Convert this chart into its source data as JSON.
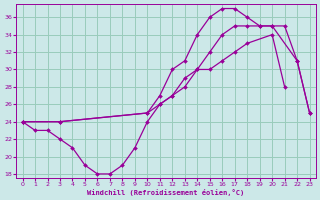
{
  "xlabel": "Windchill (Refroidissement éolien,°C)",
  "xlim": [
    -0.5,
    23.5
  ],
  "ylim": [
    17.5,
    37.5
  ],
  "yticks": [
    18,
    20,
    22,
    24,
    26,
    28,
    30,
    32,
    34,
    36
  ],
  "xticks": [
    0,
    1,
    2,
    3,
    4,
    5,
    6,
    7,
    8,
    9,
    10,
    11,
    12,
    13,
    14,
    15,
    16,
    17,
    18,
    19,
    20,
    21,
    22,
    23
  ],
  "background_color": "#cce8e8",
  "line_color": "#990099",
  "grid_color": "#99ccbb",
  "curve1_x": [
    0,
    1,
    2,
    3,
    4,
    5,
    6,
    7,
    8,
    9,
    10,
    11,
    12,
    13,
    14,
    15,
    16,
    17,
    18,
    20,
    21
  ],
  "curve1_y": [
    24,
    23,
    23,
    22,
    21,
    19,
    18,
    18,
    19,
    21,
    24,
    26,
    27,
    29,
    30,
    30,
    31,
    32,
    33,
    34,
    28
  ],
  "curve2_x": [
    0,
    3,
    10,
    11,
    12,
    13,
    14,
    15,
    16,
    17,
    18,
    19,
    20,
    21,
    22,
    23
  ],
  "curve2_y": [
    24,
    24,
    25,
    26,
    27,
    28,
    30,
    32,
    34,
    35,
    35,
    35,
    35,
    35,
    31,
    25
  ],
  "curve3_x": [
    0,
    3,
    10,
    11,
    12,
    13,
    14,
    15,
    16,
    17,
    18,
    19,
    20,
    22,
    23
  ],
  "curve3_y": [
    24,
    24,
    25,
    27,
    30,
    31,
    34,
    36,
    37,
    37,
    36,
    35,
    35,
    31,
    25
  ]
}
